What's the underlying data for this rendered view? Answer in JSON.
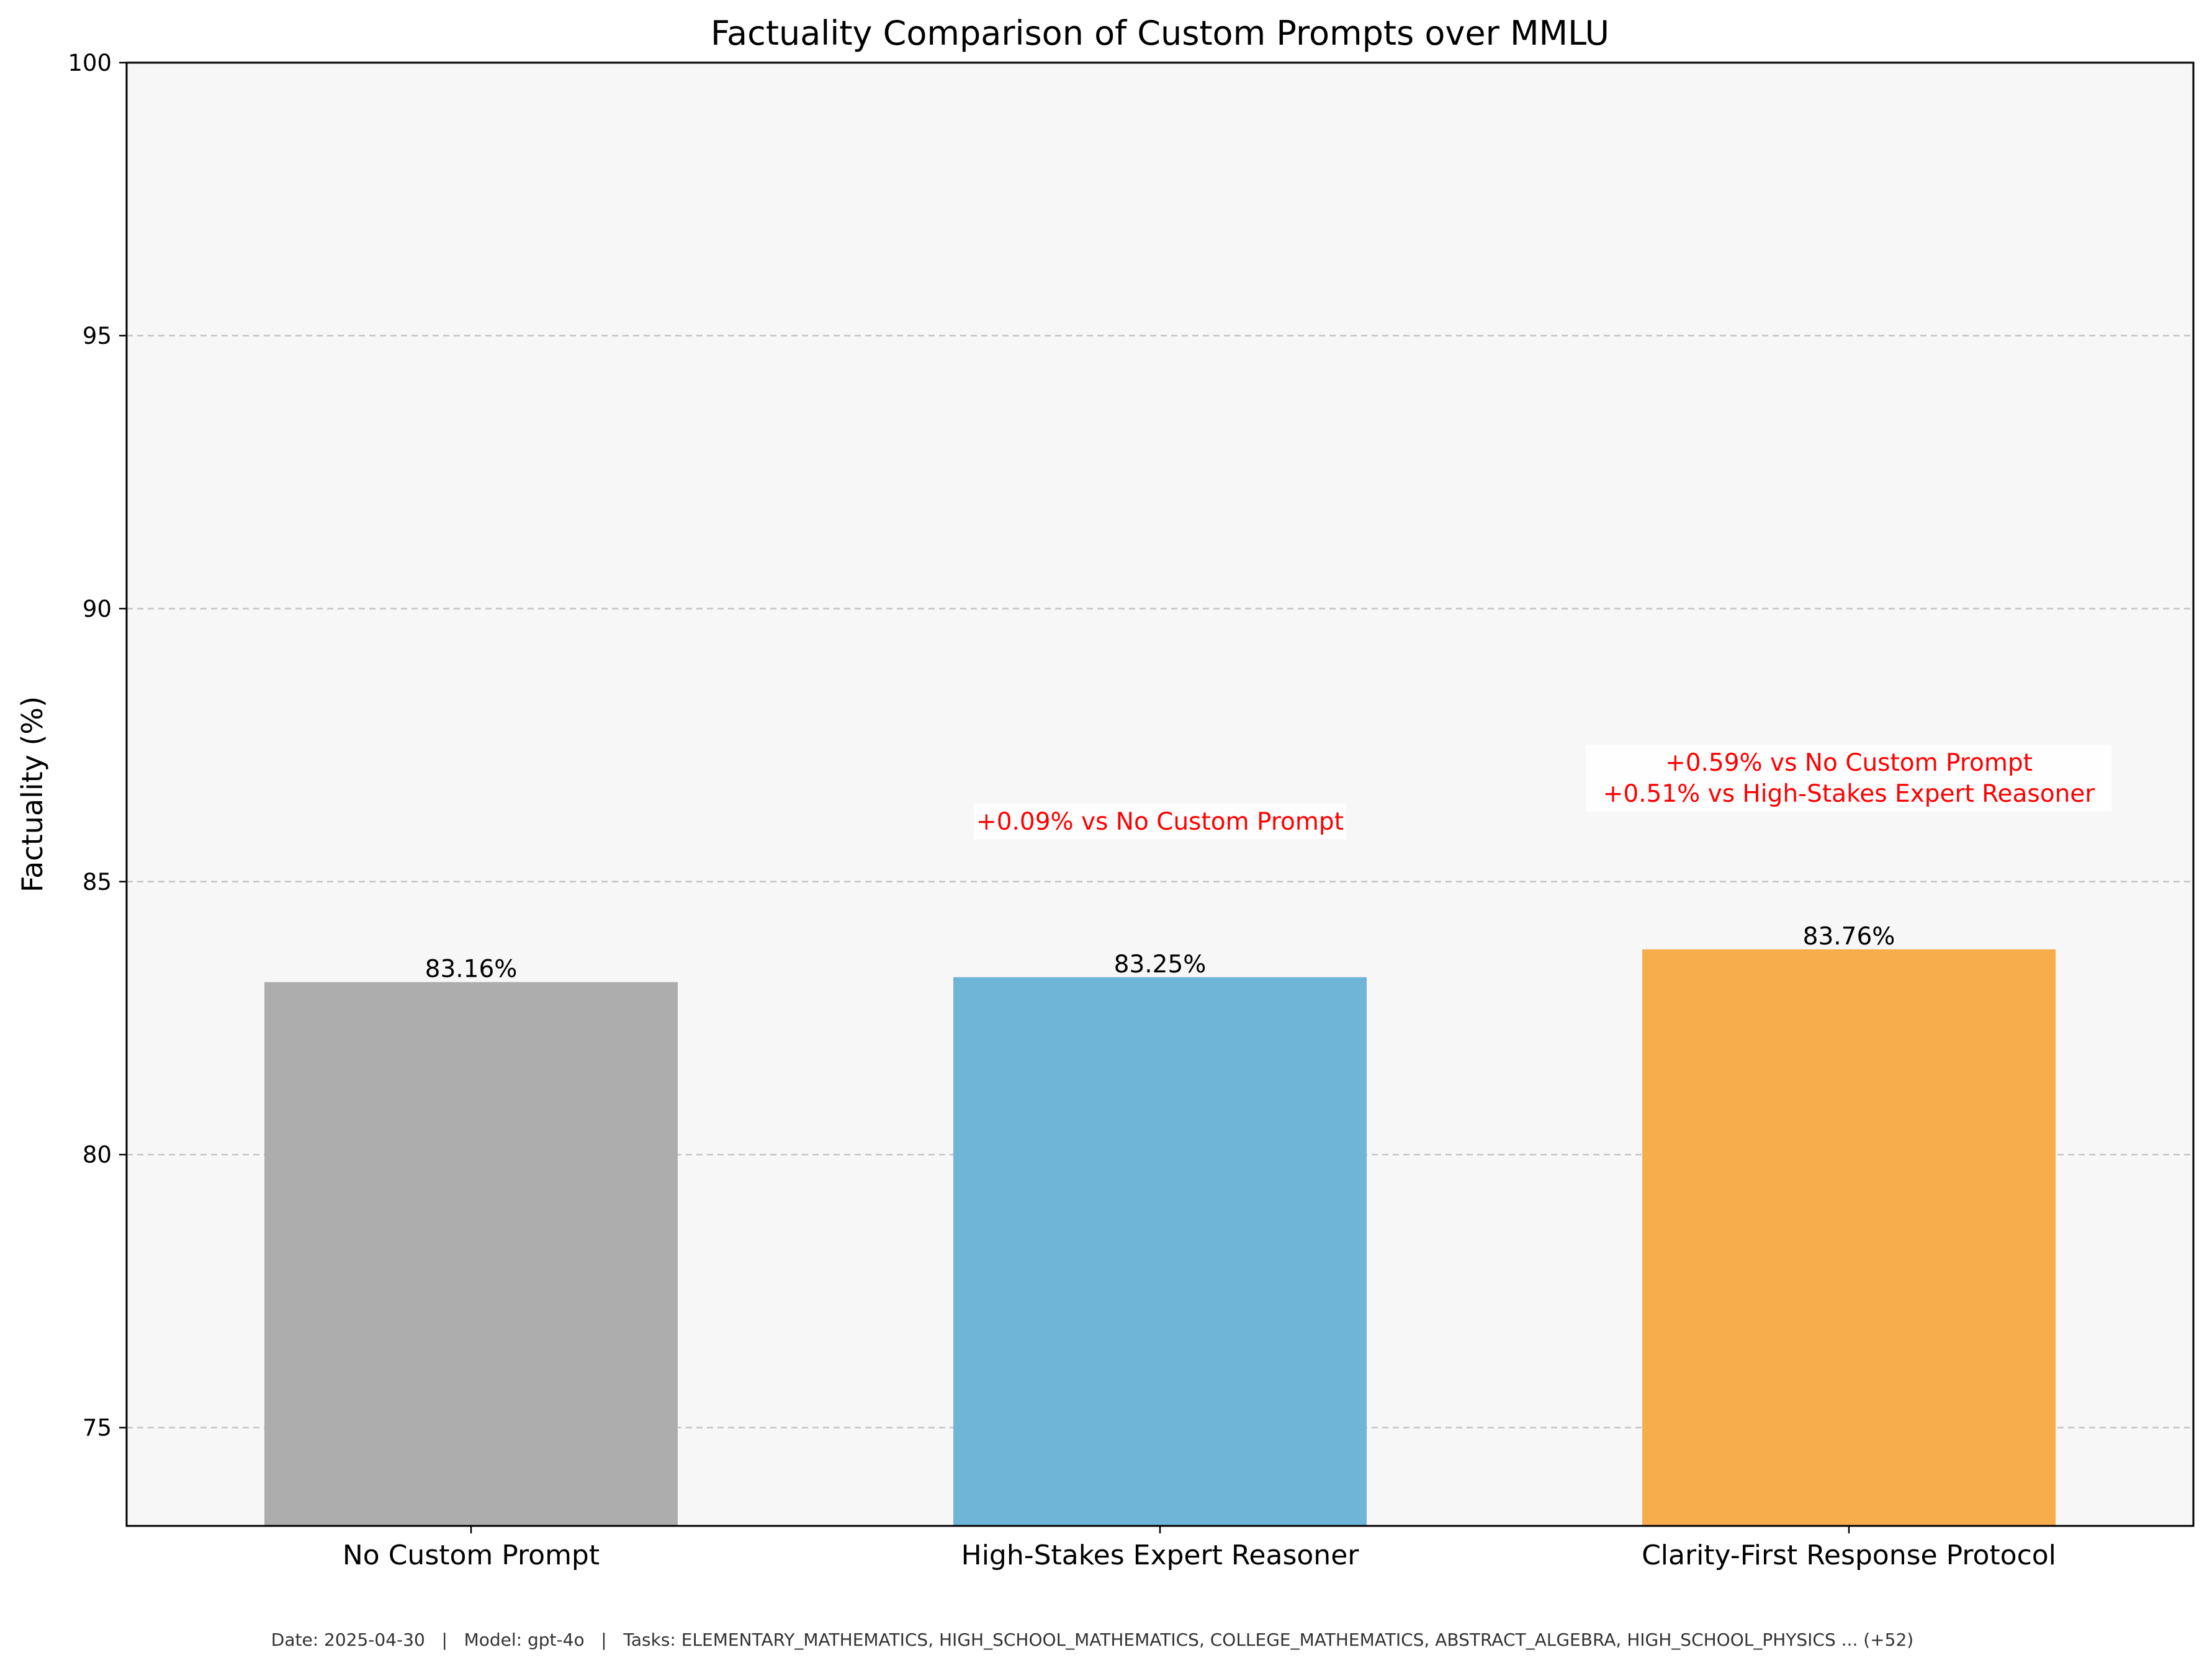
{
  "chart_data": {
    "type": "bar",
    "title": "Factuality Comparison of Custom Prompts over MMLU",
    "xlabel": "",
    "ylabel": "Factuality (%)",
    "ylim": [
      73.2,
      100
    ],
    "yticks": [
      75,
      80,
      85,
      90,
      95,
      100
    ],
    "grid": "y-dashed",
    "categories": [
      "No Custom Prompt",
      "High-Stakes Expert Reasoner",
      "Clarity-First Response Protocol"
    ],
    "values": [
      83.16,
      83.25,
      83.76
    ],
    "value_labels": [
      "83.16%",
      "83.25%",
      "83.76%"
    ],
    "colors": [
      "#adadad",
      "#6fb5d8",
      "#f7ad4c"
    ],
    "annotations": [
      [],
      [
        "+0.09% vs No Custom Prompt"
      ],
      [
        "+0.59% vs No Custom Prompt",
        "+0.51% vs High-Stakes Expert Reasoner"
      ]
    ],
    "annotation_color": "#ff0000",
    "footer": "Date: 2025-04-30   |   Model: gpt-4o   |   Tasks: ELEMENTARY_MATHEMATICS, HIGH_SCHOOL_MATHEMATICS, COLLEGE_MATHEMATICS, ABSTRACT_ALGEBRA, HIGH_SCHOOL_PHYSICS ... (+52)"
  }
}
